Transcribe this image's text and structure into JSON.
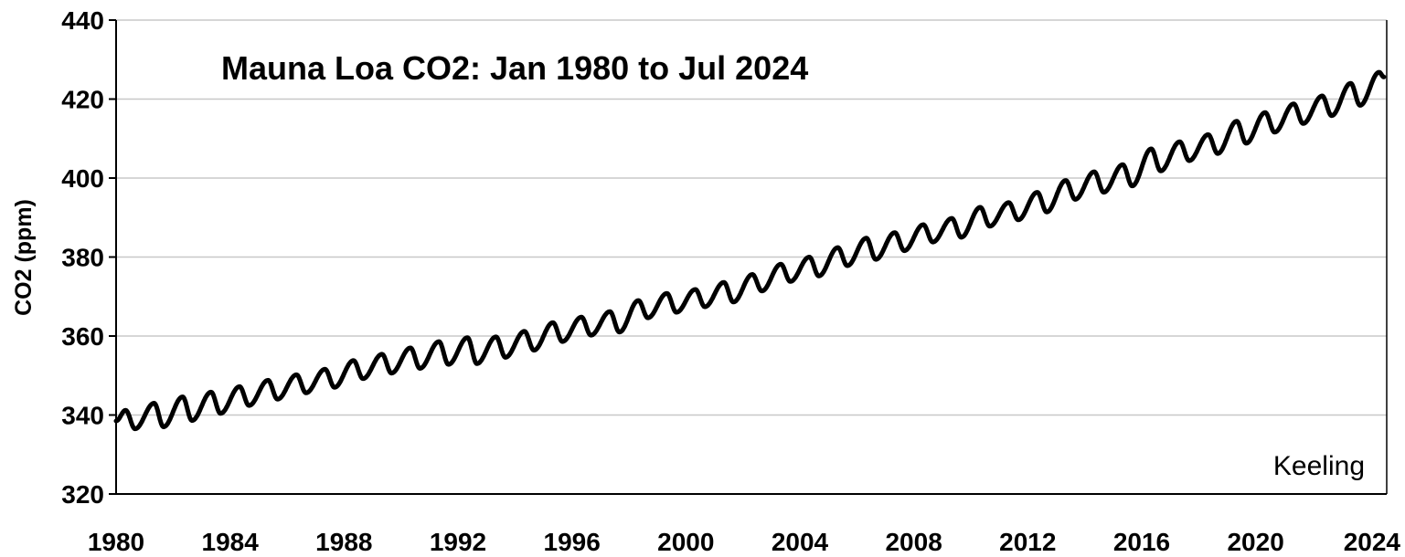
{
  "chart_data": {
    "type": "line",
    "title": "Mauna Loa CO2:  Jan 1980 to Jul 2024",
    "xlabel": "",
    "ylabel": "CO2 (ppm)",
    "source_label": "Keeling",
    "xlim": [
      1980,
      2024.6
    ],
    "ylim": [
      320,
      440
    ],
    "x_ticks": [
      1980,
      1984,
      1988,
      1992,
      1996,
      2000,
      2004,
      2008,
      2012,
      2016,
      2020,
      2024
    ],
    "x_tick_labels": [
      "1980",
      "1984",
      "1988",
      "1992",
      "1996",
      "2000",
      "2004",
      "2008",
      "2012",
      "2016",
      "2020",
      "2024"
    ],
    "y_ticks": [
      320,
      340,
      360,
      380,
      400,
      420,
      440
    ],
    "y_tick_labels": [
      "320",
      "340",
      "360",
      "380",
      "400",
      "420",
      "440"
    ],
    "grid": "horizontal",
    "line_color": "#000000",
    "grid_color": "#c8c8c8",
    "series": [
      {
        "x": [
          "1980-01",
          "1980-05",
          "1980-09",
          "1981-05",
          "1981-09",
          "1982-05",
          "1982-09",
          "1983-05",
          "1983-09",
          "1984-05",
          "1984-09",
          "1985-05",
          "1985-09",
          "1986-05",
          "1986-09",
          "1987-05",
          "1987-09",
          "1988-05",
          "1988-09",
          "1989-05",
          "1989-09",
          "1990-05",
          "1990-09",
          "1991-05",
          "1991-09",
          "1992-05",
          "1992-09",
          "1993-05",
          "1993-09",
          "1994-05",
          "1994-09",
          "1995-05",
          "1995-09",
          "1996-05",
          "1996-09",
          "1997-05",
          "1997-09",
          "1998-05",
          "1998-09",
          "1999-05",
          "1999-09",
          "2000-05",
          "2000-09",
          "2001-05",
          "2001-09",
          "2002-05",
          "2002-09",
          "2003-05",
          "2003-09",
          "2004-05",
          "2004-09",
          "2005-05",
          "2005-09",
          "2006-05",
          "2006-09",
          "2007-05",
          "2007-09",
          "2008-05",
          "2008-09",
          "2009-05",
          "2009-09",
          "2010-05",
          "2010-09",
          "2011-05",
          "2011-09",
          "2012-05",
          "2012-09",
          "2013-05",
          "2013-09",
          "2014-05",
          "2014-09",
          "2015-05",
          "2015-09",
          "2016-05",
          "2016-09",
          "2017-05",
          "2017-09",
          "2018-05",
          "2018-09",
          "2019-05",
          "2019-09",
          "2020-05",
          "2020-09",
          "2021-05",
          "2021-09",
          "2022-05",
          "2022-09",
          "2023-05",
          "2023-09",
          "2024-05",
          "2024-07"
        ],
        "values": [
          338.5,
          341.2,
          336.5,
          343.0,
          337.0,
          344.6,
          338.6,
          345.8,
          340.4,
          347.2,
          342.4,
          348.8,
          344.0,
          350.2,
          345.6,
          351.6,
          347.0,
          353.8,
          349.2,
          355.4,
          350.6,
          357.0,
          351.8,
          358.6,
          352.8,
          359.6,
          353.0,
          359.8,
          354.6,
          361.2,
          356.4,
          363.4,
          358.6,
          364.8,
          360.2,
          366.2,
          361.0,
          369.0,
          364.6,
          370.8,
          366.0,
          371.8,
          367.4,
          373.6,
          368.6,
          375.6,
          371.4,
          378.2,
          373.8,
          380.0,
          375.2,
          382.4,
          377.8,
          384.8,
          379.4,
          386.2,
          381.6,
          388.2,
          383.8,
          389.8,
          385.0,
          392.6,
          387.8,
          393.8,
          389.4,
          396.4,
          391.4,
          399.4,
          394.6,
          401.6,
          396.4,
          403.4,
          398.0,
          407.4,
          401.8,
          409.2,
          404.4,
          411.0,
          406.2,
          414.4,
          408.8,
          416.6,
          411.6,
          418.8,
          413.8,
          420.8,
          415.8,
          424.0,
          418.4,
          426.8,
          425.6
        ]
      }
    ]
  }
}
